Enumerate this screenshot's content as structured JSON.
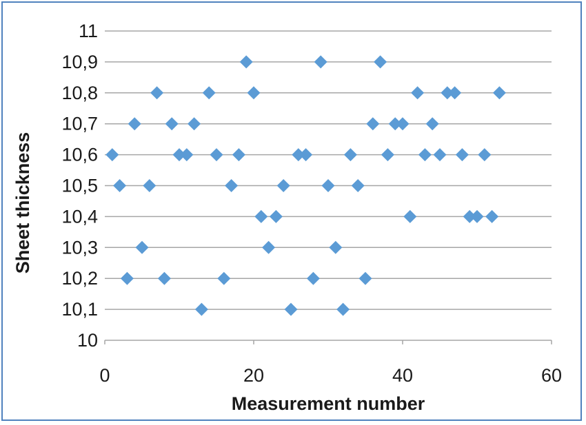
{
  "chart_data": {
    "type": "scatter",
    "xlabel": "Measurement number",
    "ylabel": "Sheet thickness",
    "xlim": [
      0,
      60
    ],
    "ylim": [
      10,
      11
    ],
    "x_ticks": [
      "0",
      "20",
      "40",
      "60"
    ],
    "y_ticks": [
      "10",
      "10,1",
      "10,2",
      "10,3",
      "10,4",
      "10,5",
      "10,6",
      "10,7",
      "10,8",
      "10,9",
      "11"
    ],
    "grid": "horizontal",
    "marker": "diamond",
    "series_color": "#5b9bd5",
    "series": [
      {
        "values": [
          [
            1,
            10.6
          ],
          [
            2,
            10.5
          ],
          [
            3,
            10.2
          ],
          [
            4,
            10.7
          ],
          [
            5,
            10.3
          ],
          [
            6,
            10.5
          ],
          [
            7,
            10.8
          ],
          [
            8,
            10.2
          ],
          [
            9,
            10.7
          ],
          [
            10,
            10.6
          ],
          [
            11,
            10.6
          ],
          [
            12,
            10.7
          ],
          [
            13,
            10.1
          ],
          [
            14,
            10.8
          ],
          [
            15,
            10.6
          ],
          [
            16,
            10.2
          ],
          [
            17,
            10.5
          ],
          [
            18,
            10.6
          ],
          [
            19,
            10.9
          ],
          [
            20,
            10.8
          ],
          [
            21,
            10.4
          ],
          [
            22,
            10.3
          ],
          [
            23,
            10.4
          ],
          [
            24,
            10.5
          ],
          [
            25,
            10.1
          ],
          [
            26,
            10.6
          ],
          [
            27,
            10.6
          ],
          [
            28,
            10.2
          ],
          [
            29,
            10.9
          ],
          [
            30,
            10.5
          ],
          [
            31,
            10.3
          ],
          [
            32,
            10.1
          ],
          [
            33,
            10.6
          ],
          [
            34,
            10.5
          ],
          [
            35,
            10.2
          ],
          [
            36,
            10.7
          ],
          [
            37,
            10.9
          ],
          [
            38,
            10.6
          ],
          [
            39,
            10.7
          ],
          [
            40,
            10.7
          ],
          [
            41,
            10.4
          ],
          [
            42,
            10.8
          ],
          [
            43,
            10.6
          ],
          [
            44,
            10.7
          ],
          [
            45,
            10.6
          ],
          [
            46,
            10.8
          ],
          [
            47,
            10.8
          ],
          [
            48,
            10.6
          ],
          [
            49,
            10.4
          ],
          [
            50,
            10.4
          ],
          [
            51,
            10.6
          ],
          [
            52,
            10.4
          ],
          [
            53,
            10.8
          ]
        ]
      }
    ]
  }
}
